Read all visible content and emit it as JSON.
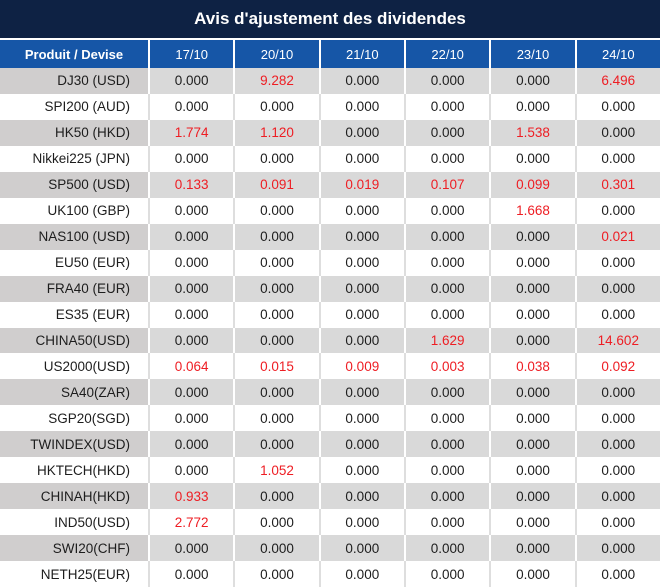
{
  "title": "Avis d'ajustement des dividendes",
  "table": {
    "product_header": "Produit / Devise",
    "date_columns": [
      "17/10",
      "20/10",
      "21/10",
      "22/10",
      "23/10",
      "24/10"
    ],
    "rows": [
      {
        "product": "DJ30 (USD)",
        "values": [
          "0.000",
          "9.282",
          "0.000",
          "0.000",
          "0.000",
          "6.496"
        ]
      },
      {
        "product": "SPI200 (AUD)",
        "values": [
          "0.000",
          "0.000",
          "0.000",
          "0.000",
          "0.000",
          "0.000"
        ]
      },
      {
        "product": "HK50 (HKD)",
        "values": [
          "1.774",
          "1.120",
          "0.000",
          "0.000",
          "1.538",
          "0.000"
        ]
      },
      {
        "product": "Nikkei225 (JPN)",
        "values": [
          "0.000",
          "0.000",
          "0.000",
          "0.000",
          "0.000",
          "0.000"
        ]
      },
      {
        "product": "SP500 (USD)",
        "values": [
          "0.133",
          "0.091",
          "0.019",
          "0.107",
          "0.099",
          "0.301"
        ]
      },
      {
        "product": "UK100 (GBP)",
        "values": [
          "0.000",
          "0.000",
          "0.000",
          "0.000",
          "1.668",
          "0.000"
        ]
      },
      {
        "product": "NAS100 (USD)",
        "values": [
          "0.000",
          "0.000",
          "0.000",
          "0.000",
          "0.000",
          "0.021"
        ]
      },
      {
        "product": "EU50 (EUR)",
        "values": [
          "0.000",
          "0.000",
          "0.000",
          "0.000",
          "0.000",
          "0.000"
        ]
      },
      {
        "product": "FRA40 (EUR)",
        "values": [
          "0.000",
          "0.000",
          "0.000",
          "0.000",
          "0.000",
          "0.000"
        ]
      },
      {
        "product": "ES35 (EUR)",
        "values": [
          "0.000",
          "0.000",
          "0.000",
          "0.000",
          "0.000",
          "0.000"
        ]
      },
      {
        "product": "CHINA50(USD)",
        "values": [
          "0.000",
          "0.000",
          "0.000",
          "1.629",
          "0.000",
          "14.602"
        ]
      },
      {
        "product": "US2000(USD)",
        "values": [
          "0.064",
          "0.015",
          "0.009",
          "0.003",
          "0.038",
          "0.092"
        ]
      },
      {
        "product": "SA40(ZAR)",
        "values": [
          "0.000",
          "0.000",
          "0.000",
          "0.000",
          "0.000",
          "0.000"
        ]
      },
      {
        "product": "SGP20(SGD)",
        "values": [
          "0.000",
          "0.000",
          "0.000",
          "0.000",
          "0.000",
          "0.000"
        ]
      },
      {
        "product": "TWINDEX(USD)",
        "values": [
          "0.000",
          "0.000",
          "0.000",
          "0.000",
          "0.000",
          "0.000"
        ]
      },
      {
        "product": "HKTECH(HKD)",
        "values": [
          "0.000",
          "1.052",
          "0.000",
          "0.000",
          "0.000",
          "0.000"
        ]
      },
      {
        "product": "CHINAH(HKD)",
        "values": [
          "0.933",
          "0.000",
          "0.000",
          "0.000",
          "0.000",
          "0.000"
        ]
      },
      {
        "product": "IND50(USD)",
        "values": [
          "2.772",
          "0.000",
          "0.000",
          "0.000",
          "0.000",
          "0.000"
        ]
      },
      {
        "product": "SWI20(CHF)",
        "values": [
          "0.000",
          "0.000",
          "0.000",
          "0.000",
          "0.000",
          "0.000"
        ]
      },
      {
        "product": "NETH25(EUR)",
        "values": [
          "0.000",
          "0.000",
          "0.000",
          "0.000",
          "0.000",
          "0.000"
        ]
      }
    ]
  },
  "colors": {
    "title_bg": "#0e2244",
    "header_bg": "#1656a7",
    "product_shade": "#d0cece",
    "row_shade": "#d9d9d9",
    "plain_grid": "#dedede",
    "highlight": "#ee1d23",
    "text": "#1d1d1d"
  }
}
